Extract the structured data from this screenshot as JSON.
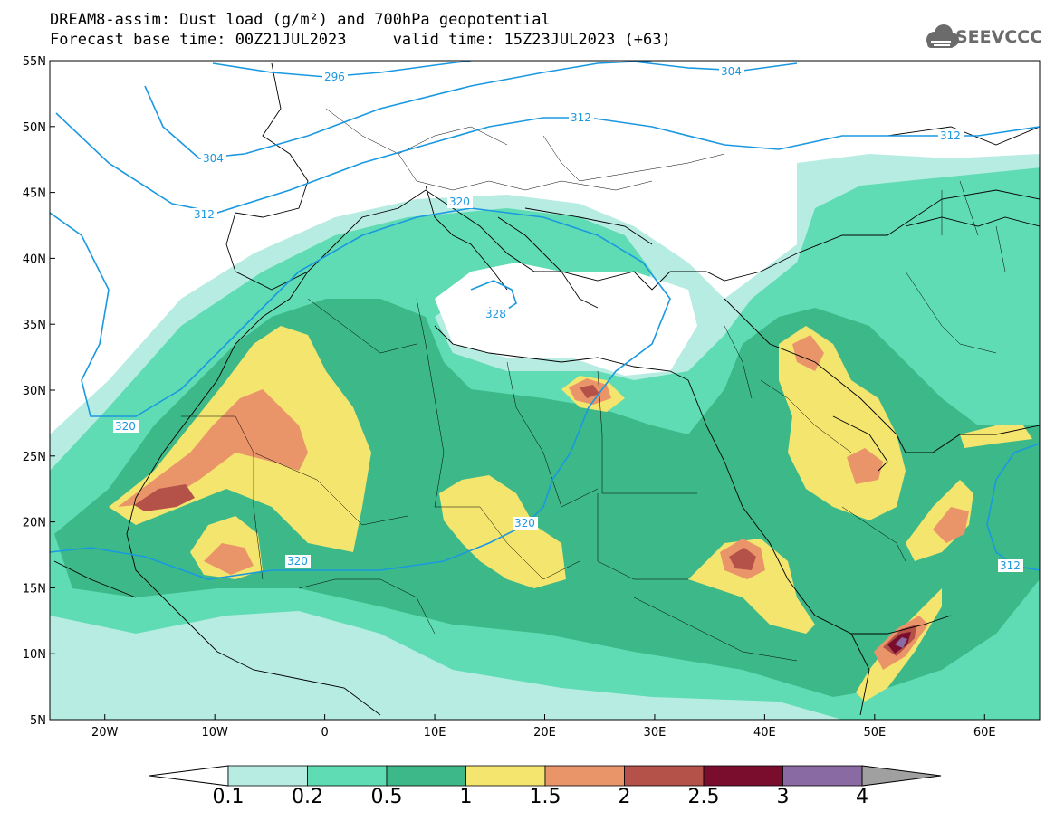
{
  "title": {
    "line1": "DREAM8-assim: Dust load (g/m²) and 700hPa geopotential",
    "line2": "Forecast base time: 00Z21JUL2023     valid time: 15Z23JUL2023 (+63)"
  },
  "logo": {
    "text": "SEEVCCC",
    "icon": "cloud-icon"
  },
  "axes": {
    "lon_ticks": [
      "20W",
      "10W",
      "0",
      "10E",
      "20E",
      "30E",
      "40E",
      "50E",
      "60E"
    ],
    "lat_ticks": [
      "55N",
      "50N",
      "45N",
      "40N",
      "35N",
      "30N",
      "25N",
      "20N",
      "15N",
      "10N",
      "5N"
    ],
    "lon_range": [
      -25,
      65
    ],
    "lat_range": [
      5,
      55
    ]
  },
  "contours": {
    "color": "#1a98e0",
    "labels": [
      "296",
      "304",
      "304",
      "312",
      "312",
      "312",
      "320",
      "320",
      "320",
      "320",
      "328",
      "312"
    ]
  },
  "colorbar": {
    "labels": [
      "0.1",
      "0.2",
      "0.5",
      "1",
      "1.5",
      "2",
      "2.5",
      "3",
      "4"
    ],
    "colors": [
      "#b7ece3",
      "#5fdcb3",
      "#3cb889",
      "#f4e56f",
      "#e99569",
      "#b45149",
      "#7a0d2d",
      "#8a6aa2",
      "#a0a0a0"
    ],
    "under_color": "#ffffff"
  },
  "dust_palette": {
    "l1": "#b7ece3",
    "l2": "#5fdcb3",
    "l3": "#3cb889",
    "l4": "#f4e56f",
    "l5": "#e99569",
    "l6": "#b45149",
    "l7": "#7a0d2d",
    "l8": "#8a6aa2"
  }
}
